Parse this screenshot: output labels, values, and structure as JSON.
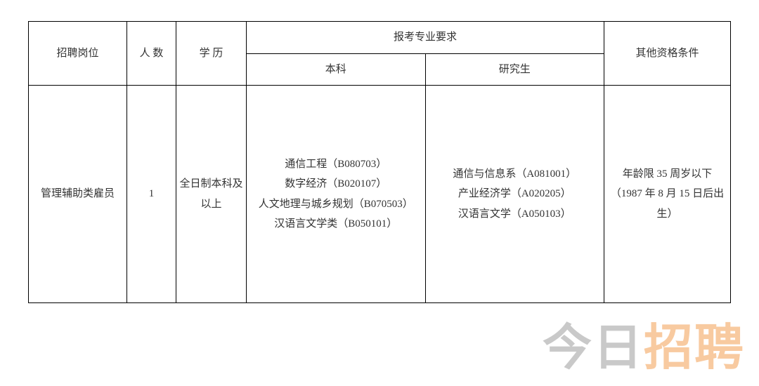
{
  "table": {
    "headers": {
      "position": "招聘岗位",
      "count_label": "人  数",
      "education_label": "学  历",
      "major_req": "报考专业要求",
      "undergrad": "本科",
      "grad": "研究生",
      "other": "其他资格条件"
    },
    "row": {
      "position": "管理辅助类雇员",
      "count": "1",
      "education": "全日制本科及以上",
      "undergrad": "通信工程（B080703）\n数字经济（B020107）\n人文地理与城乡规划（B070503）\n汉语言文学类（B050101）",
      "grad": "通信与信息系（A081001）\n产业经济学（A020205）\n汉语言文学（A050103）",
      "other": "年龄限 35 周岁以下（1987 年 8 月 15 日后出生）"
    },
    "border_color": "#000000",
    "text_color": "#333333",
    "font_size": 15
  },
  "watermark": {
    "part1": "今日",
    "part2": "招聘",
    "color1": "#888888",
    "color2": "#f08c2e",
    "font_size": 70,
    "opacity": 0.45
  }
}
